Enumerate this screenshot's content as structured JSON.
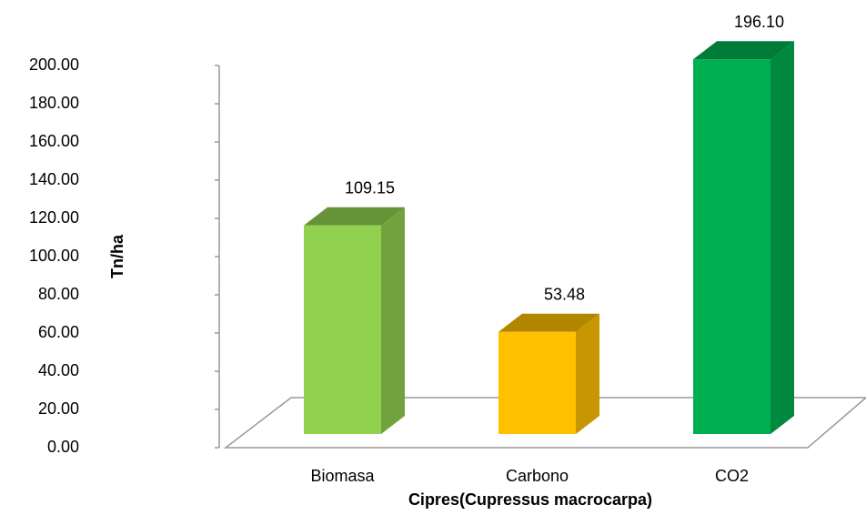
{
  "chart_data": {
    "type": "bar3d",
    "categories": [
      "Biomasa",
      "Carbono",
      "CO2"
    ],
    "values": [
      109.15,
      53.48,
      196.1
    ],
    "value_labels": [
      "109.15",
      "53.48",
      "196.10"
    ],
    "colors": [
      "#92d050",
      "#ffc000",
      "#00b050"
    ],
    "ylabel": "Tn/ha",
    "xlabel": "Cipres(Cupressus macrocarpa)",
    "ylim": [
      0,
      200
    ],
    "yticks": [
      {
        "value": 0,
        "label": "0.00"
      },
      {
        "value": 20,
        "label": "20.00"
      },
      {
        "value": 40,
        "label": "40.00"
      },
      {
        "value": 60,
        "label": "60.00"
      },
      {
        "value": 80,
        "label": "80.00"
      },
      {
        "value": 100,
        "label": "100.00"
      },
      {
        "value": 120,
        "label": "120.00"
      },
      {
        "value": 140,
        "label": "140.00"
      },
      {
        "value": 160,
        "label": "160.00"
      },
      {
        "value": 180,
        "label": "180.00"
      },
      {
        "value": 200,
        "label": "200.00"
      }
    ]
  }
}
